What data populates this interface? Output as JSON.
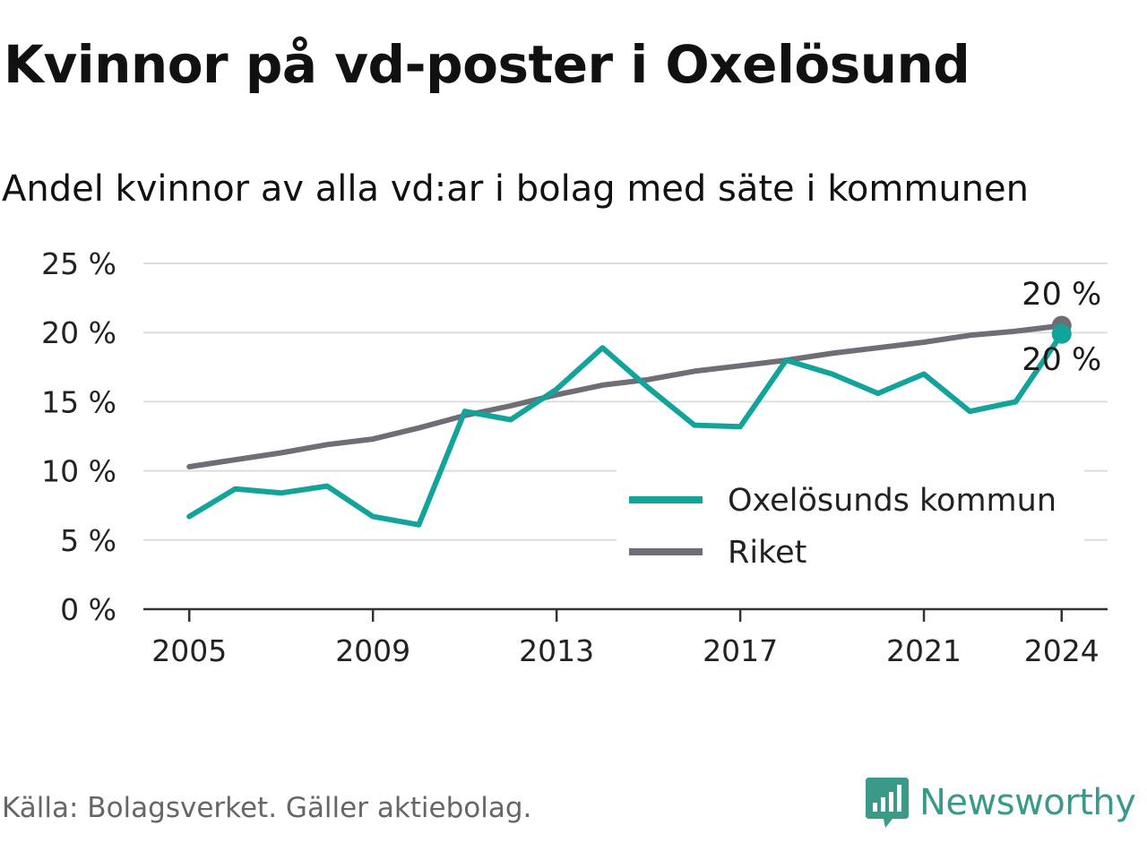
{
  "header": {
    "title": "Kvinnor på vd-poster i Oxelösund",
    "subtitle": "Andel kvinnor av alla vd:ar i bolag med säte i kommunen"
  },
  "footer": {
    "source": "Källa: Bolagsverket. Gäller aktiebolag.",
    "logo_text": "Newsworthy"
  },
  "colors": {
    "municipality": "#12a39a",
    "country": "#6f6d75",
    "grid": "#dddddd",
    "axis": "#333333",
    "logo": "#3a9a8a"
  },
  "chart_data": {
    "type": "line",
    "x": [
      2005,
      2006,
      2007,
      2008,
      2009,
      2010,
      2011,
      2012,
      2013,
      2014,
      2015,
      2016,
      2017,
      2018,
      2019,
      2020,
      2021,
      2022,
      2023,
      2024
    ],
    "x_ticks": [
      "2005",
      "2009",
      "2013",
      "2017",
      "2021",
      "2024"
    ],
    "x_tick_values": [
      2005,
      2009,
      2013,
      2017,
      2021,
      2024
    ],
    "y_ticks": [
      "0 %",
      "5 %",
      "10 %",
      "15 %",
      "20 %",
      "25 %"
    ],
    "y_tick_values": [
      0,
      5,
      10,
      15,
      20,
      25
    ],
    "ylim": [
      0,
      25
    ],
    "xlim": [
      2004,
      2025
    ],
    "grid": true,
    "legend_position": "bottom-right",
    "series": [
      {
        "name": "Oxelösunds kommun",
        "key": "municipality",
        "values": [
          6.7,
          8.7,
          8.4,
          8.9,
          6.7,
          6.1,
          14.3,
          13.7,
          15.9,
          18.9,
          16.0,
          13.3,
          13.2,
          18.0,
          17.0,
          15.6,
          17.0,
          14.3,
          15.0,
          19.9
        ],
        "end_label": "20 %"
      },
      {
        "name": "Riket",
        "key": "country",
        "values": [
          10.3,
          10.8,
          11.3,
          11.9,
          12.3,
          13.1,
          14.0,
          14.7,
          15.5,
          16.2,
          16.6,
          17.2,
          17.6,
          18.0,
          18.5,
          18.9,
          19.3,
          19.8,
          20.1,
          20.5
        ],
        "end_label": "20 %"
      }
    ]
  }
}
